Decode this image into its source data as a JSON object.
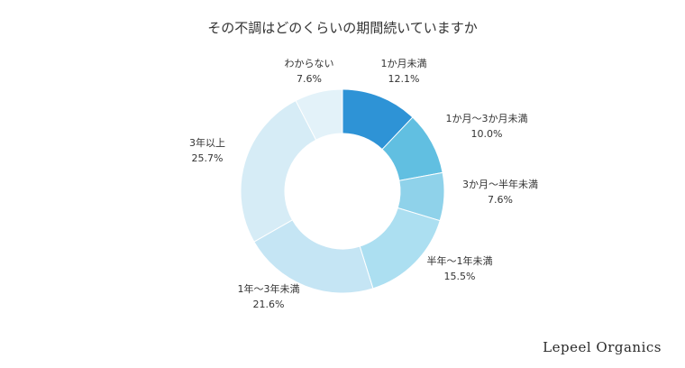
{
  "chart_data": {
    "type": "pie",
    "donut": true,
    "title": "その不調はどのくらいの期間続いていますか",
    "start": "top",
    "direction": "clockwise",
    "slices": [
      {
        "label": "1か月未満",
        "value": 12.1,
        "value_label": "12.1%",
        "color": "#2e93d6"
      },
      {
        "label": "1か月〜3か月未満",
        "value": 10.0,
        "value_label": "10.0%",
        "color": "#61bfe1"
      },
      {
        "label": "3か月〜半年未満",
        "value": 7.6,
        "value_label": "7.6%",
        "color": "#8fd2ea"
      },
      {
        "label": "半年〜1年未満",
        "value": 15.5,
        "value_label": "15.5%",
        "color": "#acdff1"
      },
      {
        "label": "1年〜3年未満",
        "value": 21.6,
        "value_label": "21.6%",
        "color": "#c5e5f4"
      },
      {
        "label": "3年以上",
        "value": 25.7,
        "value_label": "25.7%",
        "color": "#d6ecf6"
      },
      {
        "label": "わからない",
        "value": 7.6,
        "value_label": "7.6%",
        "color": "#e3f2f9"
      }
    ]
  },
  "brand": "Lepeel Organics"
}
